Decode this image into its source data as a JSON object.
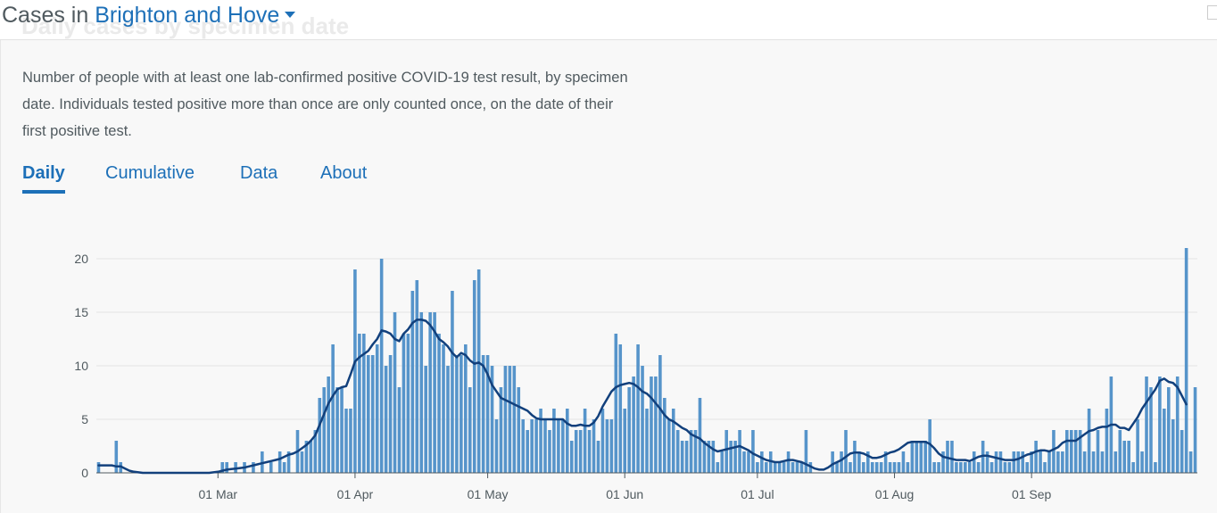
{
  "page": {
    "ghost_title": "Daily cases by specimen date",
    "heading_prefix": "Cases in",
    "area_name": "Brighton and Hove"
  },
  "card": {
    "description": "Number of people with at least one lab-confirmed positive COVID-19 test result, by specimen date. Individuals tested positive more than once are only counted once, on the date of their first positive test.",
    "tabs": [
      {
        "label": "Daily",
        "active": true
      },
      {
        "label": "Cumulative",
        "active": false
      },
      {
        "label": "Data",
        "active": false
      },
      {
        "label": "About",
        "active": false
      }
    ]
  },
  "chart_data": {
    "type": "bar",
    "start_date": "2020-02-03",
    "ylim": [
      0,
      22
    ],
    "y_ticks": [
      0,
      5,
      10,
      15,
      20
    ],
    "x_ticks": [
      {
        "label": "01 Mar",
        "date": "2020-03-01"
      },
      {
        "label": "01 Apr",
        "date": "2020-04-01"
      },
      {
        "label": "01 May",
        "date": "2020-05-01"
      },
      {
        "label": "01 Jun",
        "date": "2020-06-01"
      },
      {
        "label": "01 Jul",
        "date": "2020-07-01"
      },
      {
        "label": "01 Aug",
        "date": "2020-08-01"
      },
      {
        "label": "01 Sep",
        "date": "2020-09-01"
      }
    ],
    "grid": true,
    "bar_color": "#5694ca",
    "line_color": "#12407c",
    "series": [
      {
        "values": [
          1,
          0,
          0,
          0,
          3,
          1,
          0,
          0,
          0,
          0,
          0,
          0,
          0,
          0,
          0,
          0,
          0,
          0,
          0,
          0,
          0,
          0,
          0,
          0,
          0,
          0,
          0,
          0,
          1,
          1,
          0,
          1,
          0,
          1,
          0,
          1,
          0,
          2,
          0,
          1,
          0,
          2,
          1,
          2,
          0,
          4,
          2,
          3,
          3,
          4,
          7,
          8,
          9,
          12,
          8,
          8,
          6,
          6,
          19,
          13,
          13,
          11,
          11,
          12,
          20,
          10,
          11,
          15,
          8,
          13,
          13,
          17,
          18,
          15,
          10,
          15,
          15,
          13,
          12,
          10,
          17,
          11,
          11,
          12,
          8,
          18,
          19,
          11,
          11,
          10,
          5,
          8,
          10,
          10,
          10,
          8,
          5,
          4,
          5,
          5,
          6,
          5,
          4,
          6,
          5,
          5,
          6,
          3,
          4,
          4,
          6,
          4,
          5,
          3,
          6,
          5,
          5,
          13,
          12,
          6,
          8,
          9,
          12,
          10,
          6,
          9,
          9,
          11,
          7,
          5,
          6,
          4,
          3,
          3,
          4,
          4,
          7,
          3,
          3,
          3,
          1,
          2,
          4,
          3,
          3,
          4,
          2,
          2,
          4,
          1,
          2,
          1,
          2,
          1,
          1,
          1,
          2,
          1,
          1,
          1,
          4,
          1,
          0,
          0,
          0,
          0,
          2,
          1,
          2,
          4,
          1,
          3,
          2,
          1,
          2,
          1,
          1,
          1,
          2,
          1,
          1,
          1,
          2,
          1,
          3,
          3,
          3,
          3,
          5,
          1,
          1,
          2,
          3,
          3,
          1,
          1,
          1,
          1,
          2,
          1,
          3,
          2,
          1,
          2,
          2,
          1,
          1,
          2,
          2,
          2,
          1,
          2,
          3,
          2,
          1,
          2,
          4,
          2,
          2,
          4,
          4,
          4,
          4,
          2,
          6,
          2,
          4,
          2,
          6,
          9,
          2,
          4,
          3,
          3,
          1,
          5,
          2,
          9,
          8,
          1,
          9,
          6,
          8,
          5,
          9,
          4,
          21,
          2,
          8
        ],
        "rolling_average": [
          0.7,
          0.7,
          0.7,
          0.7,
          0.6,
          0.6,
          0.4,
          0.2,
          0.1,
          0.05,
          0,
          0,
          0,
          0,
          0,
          0,
          0,
          0,
          0,
          0,
          0,
          0,
          0,
          0,
          0,
          0,
          0.05,
          0.1,
          0.2,
          0.3,
          0.35,
          0.4,
          0.45,
          0.5,
          0.6,
          0.7,
          0.8,
          0.9,
          1.0,
          1.1,
          1.2,
          1.3,
          1.5,
          1.7,
          1.8,
          2.0,
          2.3,
          2.6,
          3.0,
          3.5,
          4.5,
          5.5,
          6.5,
          7.2,
          7.8,
          8.0,
          8.1,
          9.2,
          10.4,
          10.8,
          11.1,
          11.4,
          12.0,
          12.5,
          13.3,
          13.2,
          13.0,
          12.5,
          12.3,
          13.0,
          13.4,
          14.0,
          14.3,
          14.3,
          14.2,
          13.8,
          13.2,
          12.5,
          12.2,
          11.8,
          11.2,
          10.8,
          11.2,
          11.0,
          10.5,
          10.2,
          10.3,
          10.0,
          9.2,
          8.2,
          7.6,
          7.0,
          6.8,
          6.6,
          6.4,
          6.2,
          6.0,
          5.8,
          5.4,
          5.1,
          5.0,
          5.0,
          5.0,
          5.0,
          5.0,
          5.0,
          4.6,
          4.4,
          4.4,
          4.5,
          4.4,
          4.4,
          4.7,
          5.3,
          6.2,
          6.9,
          7.6,
          8.0,
          8.2,
          8.3,
          8.4,
          8.3,
          8.0,
          7.6,
          7.4,
          7.0,
          6.5,
          6.0,
          5.4,
          5.0,
          4.8,
          4.5,
          4.2,
          4.0,
          3.6,
          3.4,
          3.2,
          2.8,
          2.5,
          2.2,
          2.0,
          2.1,
          2.2,
          2.3,
          2.4,
          2.5,
          2.3,
          2.1,
          1.8,
          1.6,
          1.4,
          1.2,
          1.1,
          1.0,
          1.0,
          1.1,
          1.2,
          1.2,
          1.1,
          1.0,
          0.8,
          0.6,
          0.4,
          0.3,
          0.3,
          0.5,
          0.8,
          1.0,
          1.2,
          1.5,
          1.8,
          1.9,
          1.9,
          1.8,
          1.6,
          1.4,
          1.4,
          1.5,
          1.7,
          1.9,
          2.0,
          2.2,
          2.5,
          2.8,
          2.9,
          2.9,
          2.9,
          2.9,
          2.7,
          2.3,
          1.8,
          1.5,
          1.4,
          1.3,
          1.2,
          1.2,
          1.2,
          1.1,
          1.3,
          1.5,
          1.6,
          1.6,
          1.5,
          1.4,
          1.3,
          1.2,
          1.2,
          1.2,
          1.3,
          1.5,
          1.7,
          1.8,
          2.0,
          2.1,
          2.1,
          2.0,
          2.2,
          2.4,
          2.8,
          3.0,
          3.0,
          3.0,
          3.3,
          3.6,
          3.9,
          4.0,
          4.2,
          4.3,
          4.3,
          4.5,
          4.5,
          4.2,
          4.2,
          4.0,
          4.6,
          5.2,
          6.0,
          6.6,
          7.2,
          7.8,
          8.6,
          8.8,
          8.5,
          8.4,
          8.0,
          7.2,
          6.4
        ]
      }
    ]
  }
}
